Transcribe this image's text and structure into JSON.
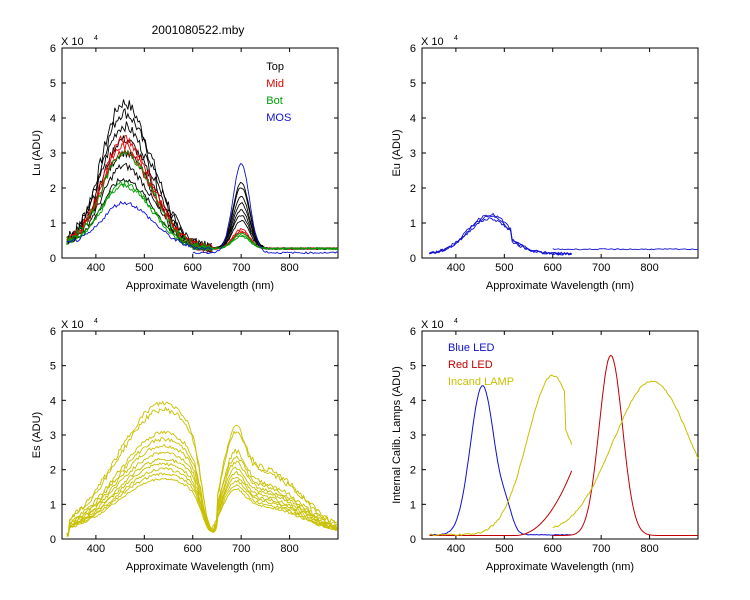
{
  "figure_title": "2001080522.mby",
  "colors": {
    "black": "#000000",
    "red": "#e00000",
    "green": "#00a000",
    "blue": "#1010d0",
    "yellow": "#c8c000",
    "darkred": "#c00000"
  },
  "chart_data": [
    {
      "id": "lu",
      "type": "line",
      "title": "",
      "exponent_label": "X 10",
      "exponent": "4",
      "xlabel": "Approximate Wavelength (nm)",
      "ylabel": "Lu (ADU)",
      "xlim": [
        330,
        900
      ],
      "ylim": [
        0,
        6
      ],
      "x_ticks": [
        400,
        500,
        600,
        700,
        800
      ],
      "y_ticks": [
        0,
        1,
        2,
        3,
        4,
        5,
        6
      ],
      "legend": [
        "Top",
        "Mid",
        "Bot",
        "MOS"
      ],
      "legend_colors": [
        "#000000",
        "#e00000",
        "#00a000",
        "#1010d0"
      ],
      "series": [
        {
          "name": "Top",
          "color": "#000000",
          "peaks": [
            4.4,
            4.1,
            3.7,
            3.3,
            2.9,
            2.5,
            2.1
          ],
          "red_peaks": [
            1.9,
            1.75,
            1.5,
            1.3,
            1.1,
            0.95,
            0.8
          ],
          "tail": 0.27
        },
        {
          "name": "Mid",
          "color": "#e00000",
          "peaks": [
            3.3,
            3.1,
            2.9
          ],
          "red_peaks": [
            0.55,
            0.5,
            0.45
          ],
          "tail": 0.27
        },
        {
          "name": "Bot",
          "color": "#00a000",
          "peaks": [
            2.9,
            2.0,
            1.9
          ],
          "red_peaks": [
            0.45,
            0.4,
            0.35
          ],
          "tail": 0.27
        },
        {
          "name": "MOS",
          "color": "#1010d0",
          "peaks": [
            1.4
          ],
          "red_peaks": [
            2.55
          ],
          "tail": 0.15
        }
      ]
    },
    {
      "id": "eu",
      "type": "line",
      "exponent_label": "X 10",
      "exponent": "4",
      "xlabel": "Approximate Wavelength (nm)",
      "ylabel": "Eu  (ADU)",
      "xlim": [
        330,
        900
      ],
      "ylim": [
        0,
        6
      ],
      "x_ticks": [
        400,
        500,
        600,
        700,
        800
      ],
      "y_ticks": [
        0,
        1,
        2,
        3,
        4,
        5,
        6
      ],
      "series": [
        {
          "name": "Eu",
          "color": "#1010d0",
          "peak": 1.25,
          "peak_wavelength": 470,
          "tail": 0.25
        }
      ]
    },
    {
      "id": "es",
      "type": "line",
      "exponent_label": "X 10",
      "exponent": "4",
      "xlabel": "Approximate Wavelength (nm)",
      "ylabel": "Es  (ADU)",
      "xlim": [
        330,
        900
      ],
      "ylim": [
        0,
        6
      ],
      "x_ticks": [
        400,
        500,
        600,
        700,
        800
      ],
      "y_ticks": [
        0,
        1,
        2,
        3,
        4,
        5,
        6
      ],
      "series": [
        {
          "name": "Es",
          "color": "#c8c000",
          "peaks": [
            4.0,
            3.8,
            3.1,
            2.9,
            2.7,
            2.5,
            2.3,
            2.15,
            2.0,
            1.85,
            1.7
          ]
        }
      ]
    },
    {
      "id": "calib",
      "type": "line",
      "exponent_label": "X 10",
      "exponent": "4",
      "xlabel": "Approximate Wavelength (nm)",
      "ylabel": "Internal Calib. Lamps (ADU)",
      "xlim": [
        330,
        900
      ],
      "ylim": [
        0,
        6
      ],
      "x_ticks": [
        400,
        500,
        600,
        700,
        800
      ],
      "y_ticks": [
        0,
        1,
        2,
        3,
        4,
        5,
        6
      ],
      "legend": [
        "Blue LED",
        "Red LED",
        "Incand LAMP"
      ],
      "legend_colors": [
        "#1010d0",
        "#c00000",
        "#c8c000"
      ],
      "series": [
        {
          "name": "Blue LED",
          "color": "#1010d0",
          "peak": 4.3,
          "peak_wavelength": 455
        },
        {
          "name": "Red LED",
          "color": "#c00000",
          "peak": 5.2,
          "peak_wavelength": 720
        },
        {
          "name": "Incand LAMP",
          "color": "#c8c000",
          "peak_left": 4.6,
          "peak_left_wavelength": 600,
          "peak_right": 4.4,
          "peak_right_wavelength": 805
        }
      ]
    }
  ]
}
